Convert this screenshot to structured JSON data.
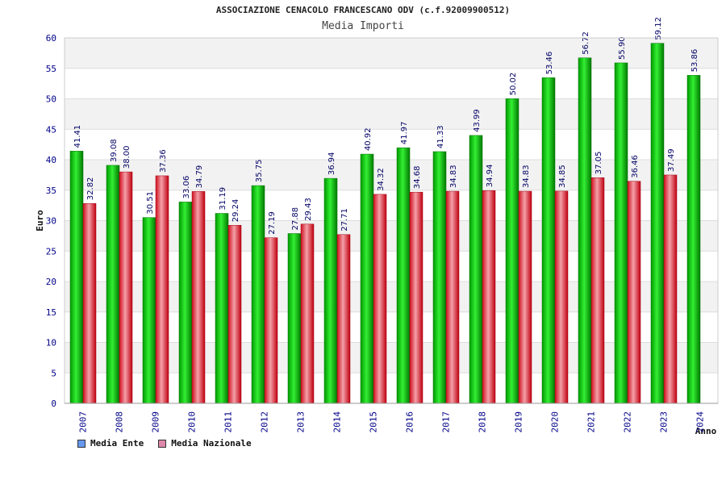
{
  "chart_data": {
    "type": "bar",
    "title": "ASSOCIAZIONE CENACOLO FRANCESCANO ODV (c.f.92009900512)",
    "subtitle": "Media Importi",
    "ylabel": "Euro",
    "xlabel": "Anno",
    "ylim": [
      0,
      60
    ],
    "ytick_step": 5,
    "grid": true,
    "legend_position": "bottom-left",
    "categories": [
      "2007",
      "2008",
      "2009",
      "2010",
      "2011",
      "2012",
      "2013",
      "2014",
      "2015",
      "2016",
      "2017",
      "2018",
      "2019",
      "2020",
      "2021",
      "2022",
      "2023",
      "2024"
    ],
    "series": [
      {
        "name": "Media Ente",
        "color": "#00c000",
        "legend_color": "#6699ee",
        "values": [
          41.41,
          39.08,
          30.51,
          33.06,
          31.19,
          35.75,
          27.88,
          36.94,
          40.92,
          41.97,
          41.33,
          43.99,
          50.02,
          53.46,
          56.72,
          55.9,
          59.12,
          53.86
        ],
        "labels": [
          "41.41",
          "39.08",
          "30.51",
          "33.06",
          "31.19",
          "35.75",
          "27.88",
          "36.94",
          "40.92",
          "41.97",
          "41.33",
          "43.99",
          "50.02",
          "53.46",
          "56.72",
          "55.90",
          "59.12",
          "53.86"
        ]
      },
      {
        "name": "Media Nazionale",
        "color": "#e02030",
        "legend_color": "#dd88aa",
        "values": [
          32.82,
          38.0,
          37.36,
          34.79,
          29.24,
          27.19,
          29.43,
          27.71,
          34.32,
          34.68,
          34.83,
          34.94,
          34.83,
          34.85,
          37.05,
          36.46,
          37.49,
          null
        ],
        "labels": [
          "32.82",
          "38.00",
          "37.36",
          "34.79",
          "29.24",
          "27.19",
          "29.43",
          "27.71",
          "34.32",
          "34.68",
          "34.83",
          "34.94",
          "34.83",
          "34.85",
          "37.05",
          "36.46",
          "37.49",
          ""
        ]
      }
    ]
  }
}
